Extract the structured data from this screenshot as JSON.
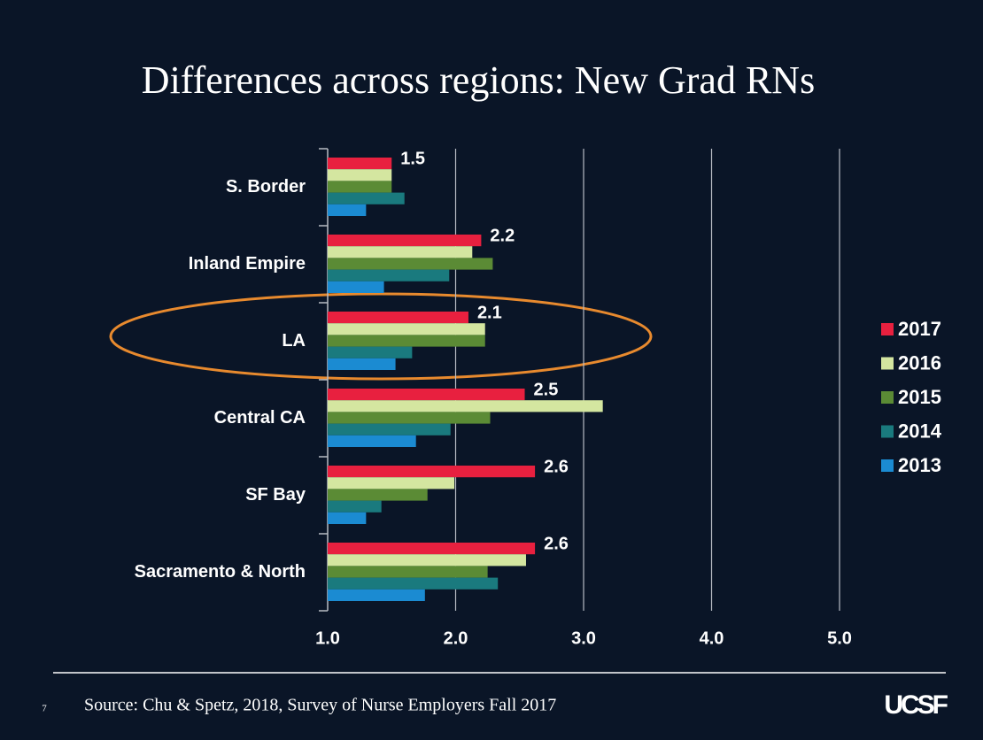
{
  "chart_data": {
    "type": "bar",
    "orientation": "horizontal",
    "title": "Differences across regions: New Grad RNs",
    "categories": [
      "S. Border",
      "Inland Empire",
      "LA",
      "Central CA",
      "SF Bay",
      "Sacramento & North"
    ],
    "series": [
      {
        "name": "2017",
        "color": "#e8203f",
        "values": [
          1.5,
          2.2,
          2.1,
          2.54,
          2.62,
          2.62
        ],
        "value_labels": [
          "1.5",
          "2.2",
          "2.1",
          "2.5",
          "2.6",
          "2.6"
        ]
      },
      {
        "name": "2016",
        "color": "#d4e6a0",
        "values": [
          1.5,
          2.13,
          2.23,
          3.15,
          1.99,
          2.55
        ]
      },
      {
        "name": "2015",
        "color": "#5b8b35",
        "values": [
          1.5,
          2.29,
          2.23,
          2.27,
          1.78,
          2.25
        ]
      },
      {
        "name": "2014",
        "color": "#1a7a7e",
        "values": [
          1.6,
          1.95,
          1.66,
          1.96,
          1.42,
          2.33
        ]
      },
      {
        "name": "2013",
        "color": "#1b8bd2",
        "values": [
          1.3,
          1.44,
          1.53,
          1.69,
          1.3,
          1.76
        ]
      }
    ],
    "xlim": [
      1,
      5
    ],
    "xticks": [
      {
        "value": 1,
        "label": "1.0"
      },
      {
        "value": 2,
        "label": "2.0"
      },
      {
        "value": 3,
        "label": "3.0"
      },
      {
        "value": 4,
        "label": "4.0"
      },
      {
        "value": 5,
        "label": "5.0"
      }
    ],
    "grid": true,
    "legend": "right"
  },
  "footer": {
    "page_number": "7",
    "source": "Source: Chu & Spetz, 2018, Survey of Nurse Employers Fall 2017",
    "logo": "UCSF"
  }
}
